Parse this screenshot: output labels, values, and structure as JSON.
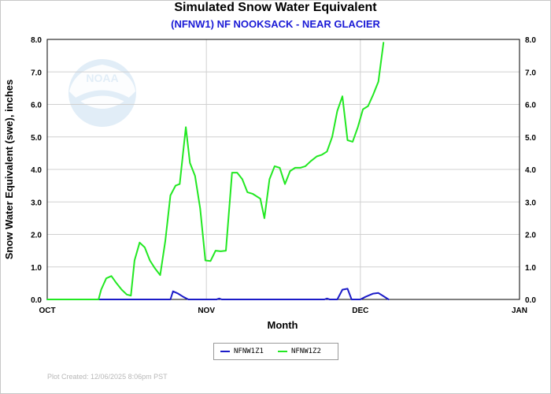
{
  "title": "Simulated Snow Water Equivalent",
  "subtitle": "(NFNW1) NF NOOKSACK - NEAR GLACIER",
  "footer_note": "Plot Created: 12/06/2025 8:06pm PST",
  "watermark_text": "NOAA",
  "chart_data": {
    "type": "line",
    "title": "Simulated Snow Water Equivalent",
    "subtitle": "(NFNW1) NF NOOKSACK - NEAR GLACIER",
    "xlabel": "Month",
    "ylabel": "Snow Water Equivalent (swe),  inches",
    "x_tick_labels": [
      "OCT",
      "NOV",
      "DEC",
      "JAN"
    ],
    "x_tick_days": [
      0,
      31,
      61,
      92
    ],
    "xlim_days": [
      0,
      92
    ],
    "ylim": [
      0,
      8
    ],
    "y_ticks": [
      "0.0",
      "1.0",
      "2.0",
      "3.0",
      "4.0",
      "5.0",
      "6.0",
      "7.0",
      "8.0"
    ],
    "grid": true,
    "legend_position": "bottom-center",
    "series": [
      {
        "name": "NFNW1Z1",
        "color": "#1c1cc8",
        "points": [
          [
            0,
            0
          ],
          [
            24,
            0
          ],
          [
            24.5,
            0.25
          ],
          [
            25.5,
            0.18
          ],
          [
            26.5,
            0.08
          ],
          [
            27.5,
            0
          ],
          [
            33,
            0
          ],
          [
            33.5,
            0.03
          ],
          [
            34,
            0
          ],
          [
            54,
            0
          ],
          [
            54.5,
            0.03
          ],
          [
            55,
            0
          ],
          [
            56.5,
            0
          ],
          [
            57.5,
            0.3
          ],
          [
            58.5,
            0.33
          ],
          [
            59.3,
            0
          ],
          [
            61,
            0
          ],
          [
            62,
            0.08
          ],
          [
            63.5,
            0.18
          ],
          [
            64.5,
            0.2
          ],
          [
            65.5,
            0.1
          ],
          [
            66.5,
            0
          ]
        ]
      },
      {
        "name": "NFNW1Z2",
        "color": "#22e822",
        "points": [
          [
            0,
            0
          ],
          [
            10,
            0
          ],
          [
            10.5,
            0.3
          ],
          [
            11.5,
            0.65
          ],
          [
            12.5,
            0.72
          ],
          [
            13.5,
            0.5
          ],
          [
            14.5,
            0.3
          ],
          [
            15.5,
            0.15
          ],
          [
            16.3,
            0.12
          ],
          [
            17,
            1.2
          ],
          [
            18,
            1.75
          ],
          [
            19,
            1.6
          ],
          [
            20,
            1.2
          ],
          [
            21,
            0.95
          ],
          [
            22,
            0.75
          ],
          [
            23,
            1.8
          ],
          [
            24,
            3.2
          ],
          [
            25,
            3.5
          ],
          [
            25.8,
            3.55
          ],
          [
            27,
            5.3
          ],
          [
            27.8,
            4.2
          ],
          [
            28.8,
            3.8
          ],
          [
            29.8,
            2.8
          ],
          [
            30.8,
            1.2
          ],
          [
            31.8,
            1.18
          ],
          [
            32.8,
            1.5
          ],
          [
            33.8,
            1.48
          ],
          [
            34.8,
            1.5
          ],
          [
            36,
            3.9
          ],
          [
            37,
            3.9
          ],
          [
            38,
            3.7
          ],
          [
            39,
            3.3
          ],
          [
            40,
            3.25
          ],
          [
            41.5,
            3.1
          ],
          [
            42.3,
            2.5
          ],
          [
            43.3,
            3.7
          ],
          [
            44.3,
            4.1
          ],
          [
            45.3,
            4.05
          ],
          [
            46.3,
            3.55
          ],
          [
            47.3,
            3.95
          ],
          [
            48.3,
            4.05
          ],
          [
            49.3,
            4.05
          ],
          [
            50.3,
            4.1
          ],
          [
            51.3,
            4.25
          ],
          [
            52.5,
            4.4
          ],
          [
            53.5,
            4.45
          ],
          [
            54.5,
            4.55
          ],
          [
            55.5,
            5.0
          ],
          [
            56.5,
            5.8
          ],
          [
            57.5,
            6.25
          ],
          [
            58.5,
            4.9
          ],
          [
            59.5,
            4.85
          ],
          [
            60.5,
            5.3
          ],
          [
            61.5,
            5.85
          ],
          [
            62.5,
            5.95
          ],
          [
            63.5,
            6.3
          ],
          [
            64.5,
            6.7
          ],
          [
            65.5,
            7.9
          ]
        ]
      }
    ]
  }
}
